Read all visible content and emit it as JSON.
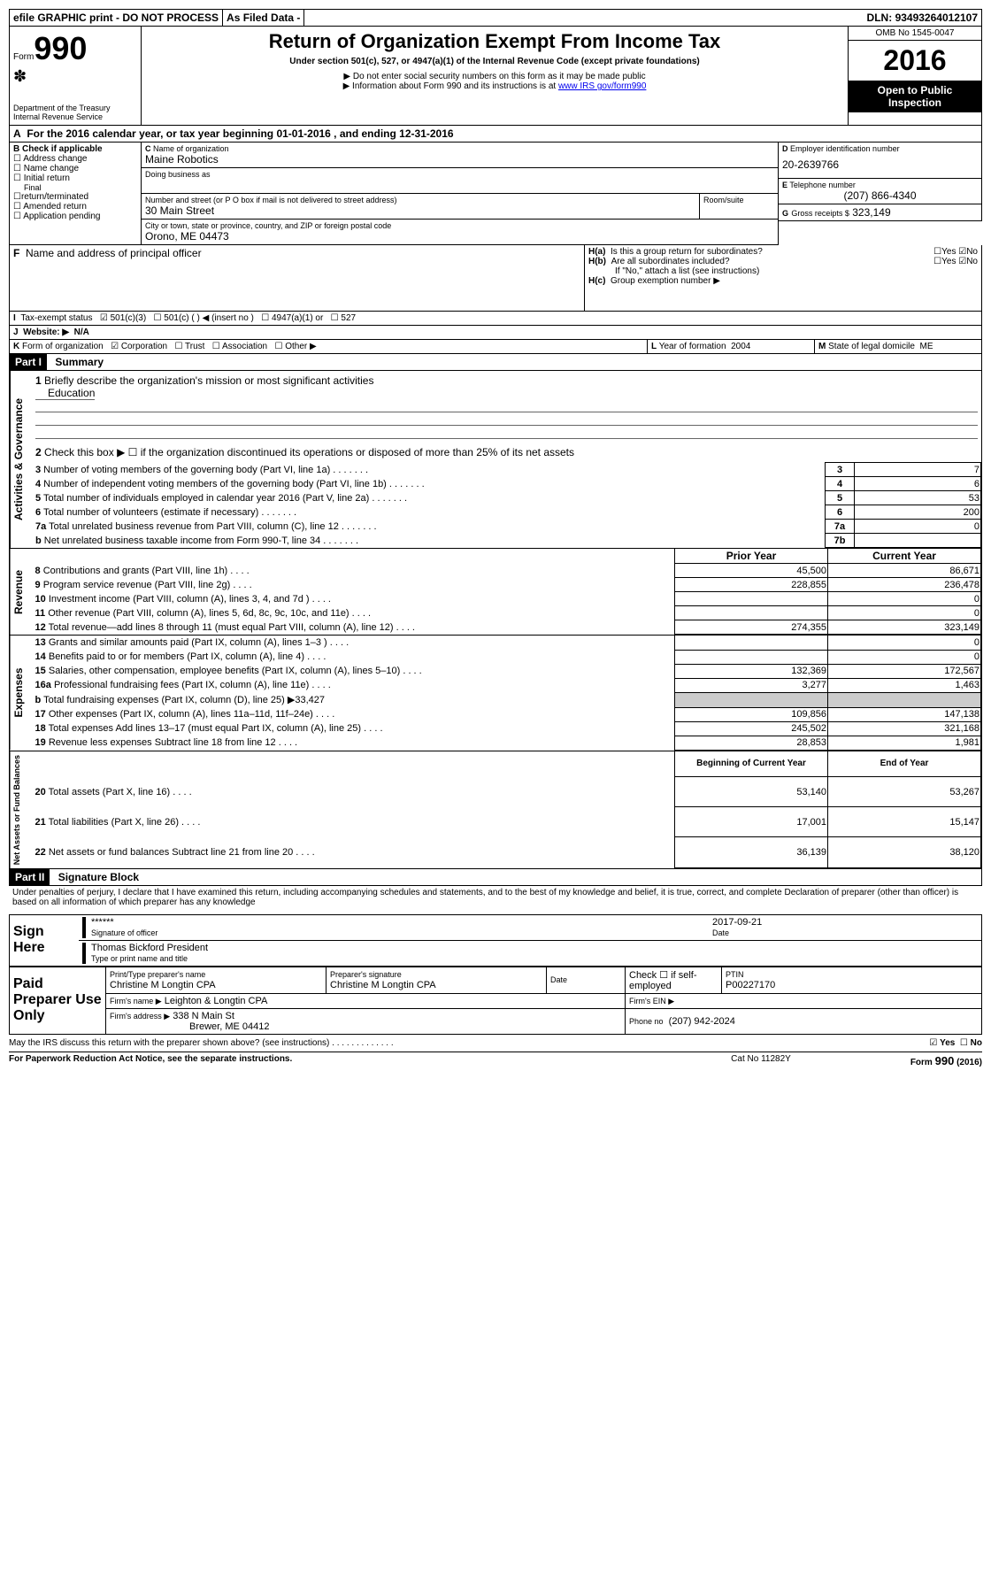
{
  "top": {
    "efile": "efile GRAPHIC print - DO NOT PROCESS",
    "asfiled": "As Filed Data -",
    "dln_label": "DLN:",
    "dln": "93493264012107"
  },
  "header": {
    "form_label": "Form",
    "form_no": "990",
    "dept": "Department of the Treasury",
    "irs": "Internal Revenue Service",
    "title": "Return of Organization Exempt From Income Tax",
    "subtitle": "Under section 501(c), 527, or 4947(a)(1) of the Internal Revenue Code (except private foundations)",
    "note1": "▶ Do not enter social security numbers on this form as it may be made public",
    "note2_pre": "▶ Information about Form 990 and its instructions is at ",
    "note2_link": "www IRS gov/form990",
    "omb": "OMB No 1545-0047",
    "year": "2016",
    "open": "Open to Public Inspection"
  },
  "A": {
    "text": "For the 2016 calendar year, or tax year beginning 01-01-2016  , and ending 12-31-2016"
  },
  "B": {
    "label": "Check if applicable",
    "opts": [
      "Address change",
      "Name change",
      "Initial return",
      "Final return/terminated",
      "Amended return",
      "Application pending"
    ]
  },
  "C": {
    "name_label": "Name of organization",
    "name": "Maine Robotics",
    "dba_label": "Doing business as",
    "addr_label": "Number and street (or P O  box if mail is not delivered to street address)",
    "room_label": "Room/suite",
    "addr": "30 Main Street",
    "city_label": "City or town, state or province, country, and ZIP or foreign postal code",
    "city": "Orono, ME  04473"
  },
  "D": {
    "label": "Employer identification number",
    "val": "20-2639766"
  },
  "E": {
    "label": "Telephone number",
    "val": "(207) 866-4340"
  },
  "G": {
    "label": "Gross receipts $",
    "val": "323,149"
  },
  "F": {
    "label": "Name and address of principal officer"
  },
  "H": {
    "a": "Is this a group return for subordinates?",
    "a_no": "No",
    "b": "Are all subordinates included?",
    "b_no": "No",
    "b_note": "If \"No,\" attach a list  (see instructions)",
    "c": "Group exemption number ▶"
  },
  "I": {
    "label": "Tax-exempt status",
    "c3": "501(c)(3)",
    "c": "501(c) (   ) ◀ (insert no )",
    "a1": "4947(a)(1) or",
    "s527": "527"
  },
  "J": {
    "label": "Website: ▶",
    "val": "N/A"
  },
  "K": {
    "label": "Form of organization",
    "opts": [
      "Corporation",
      "Trust",
      "Association",
      "Other ▶"
    ]
  },
  "L": {
    "label": "Year of formation",
    "val": "2004"
  },
  "M": {
    "label": "State of legal domicile",
    "val": "ME"
  },
  "partI": {
    "hdr": "Part I",
    "title": "Summary",
    "q1": "Briefly describe the organization's mission or most significant activities",
    "q1a": "Education",
    "q2": "Check this box ▶ ☐  if the organization discontinued its operations or disposed of more than 25% of its net assets",
    "rows": [
      {
        "n": "3",
        "t": "Number of voting members of the governing body (Part VI, line 1a)",
        "box": "3",
        "v": "7"
      },
      {
        "n": "4",
        "t": "Number of independent voting members of the governing body (Part VI, line 1b)",
        "box": "4",
        "v": "6"
      },
      {
        "n": "5",
        "t": "Total number of individuals employed in calendar year 2016 (Part V, line 2a)",
        "box": "5",
        "v": "53"
      },
      {
        "n": "6",
        "t": "Total number of volunteers (estimate if necessary)",
        "box": "6",
        "v": "200"
      },
      {
        "n": "7a",
        "t": "Total unrelated business revenue from Part VIII, column (C), line 12",
        "box": "7a",
        "v": "0"
      },
      {
        "n": "b",
        "t": "Net unrelated business taxable income from Form 990-T, line 34",
        "box": "7b",
        "v": ""
      }
    ],
    "py": "Prior Year",
    "cy": "Current Year",
    "rev": [
      {
        "n": "8",
        "t": "Contributions and grants (Part VIII, line 1h)",
        "p": "45,500",
        "c": "86,671"
      },
      {
        "n": "9",
        "t": "Program service revenue (Part VIII, line 2g)",
        "p": "228,855",
        "c": "236,478"
      },
      {
        "n": "10",
        "t": "Investment income (Part VIII, column (A), lines 3, 4, and 7d )",
        "p": "",
        "c": "0"
      },
      {
        "n": "11",
        "t": "Other revenue (Part VIII, column (A), lines 5, 6d, 8c, 9c, 10c, and 11e)",
        "p": "",
        "c": "0"
      },
      {
        "n": "12",
        "t": "Total revenue—add lines 8 through 11 (must equal Part VIII, column (A), line 12)",
        "p": "274,355",
        "c": "323,149"
      }
    ],
    "exp": [
      {
        "n": "13",
        "t": "Grants and similar amounts paid (Part IX, column (A), lines 1–3 )",
        "p": "",
        "c": "0"
      },
      {
        "n": "14",
        "t": "Benefits paid to or for members (Part IX, column (A), line 4)",
        "p": "",
        "c": "0"
      },
      {
        "n": "15",
        "t": "Salaries, other compensation, employee benefits (Part IX, column (A), lines 5–10)",
        "p": "132,369",
        "c": "172,567"
      },
      {
        "n": "16a",
        "t": "Professional fundraising fees (Part IX, column (A), line 11e)",
        "p": "3,277",
        "c": "1,463"
      },
      {
        "n": "b",
        "t": "Total fundraising expenses (Part IX, column (D), line 25) ▶33,427",
        "p": "",
        "c": "",
        "grey": true
      },
      {
        "n": "17",
        "t": "Other expenses (Part IX, column (A), lines 11a–11d, 11f–24e)",
        "p": "109,856",
        "c": "147,138"
      },
      {
        "n": "18",
        "t": "Total expenses  Add lines 13–17 (must equal Part IX, column (A), line 25)",
        "p": "245,502",
        "c": "321,168"
      },
      {
        "n": "19",
        "t": "Revenue less expenses  Subtract line 18 from line 12",
        "p": "28,853",
        "c": "1,981"
      }
    ],
    "bcy": "Beginning of Current Year",
    "ey": "End of Year",
    "net": [
      {
        "n": "20",
        "t": "Total assets (Part X, line 16)",
        "p": "53,140",
        "c": "53,267"
      },
      {
        "n": "21",
        "t": "Total liabilities (Part X, line 26)",
        "p": "17,001",
        "c": "15,147"
      },
      {
        "n": "22",
        "t": "Net assets or fund balances  Subtract line 21 from line 20",
        "p": "36,139",
        "c": "38,120"
      }
    ],
    "side_ag": "Activities & Governance",
    "side_rev": "Revenue",
    "side_exp": "Expenses",
    "side_net": "Net Assets or Fund Balances"
  },
  "partII": {
    "hdr": "Part II",
    "title": "Signature Block",
    "decl": "Under penalties of perjury, I declare that I have examined this return, including accompanying schedules and statements, and to the best of my knowledge and belief, it is true, correct, and complete  Declaration of preparer (other than officer) is based on all information of which preparer has any knowledge",
    "sign_here": "Sign Here",
    "stars": "******",
    "sig_officer": "Signature of officer",
    "date": "2017-09-21",
    "date_lbl": "Date",
    "name_title": "Thomas Bickford President",
    "type_lbl": "Type or print name and title",
    "paid": "Paid Preparer Use Only",
    "prep_name_lbl": "Print/Type preparer's name",
    "prep_name": "Christine M Longtin CPA",
    "prep_sig_lbl": "Preparer's signature",
    "prep_sig": "Christine M Longtin CPA",
    "check_lbl": "Check ☐ if self-employed",
    "ptin_lbl": "PTIN",
    "ptin": "P00227170",
    "firm_name_lbl": "Firm's name   ▶",
    "firm_name": "Leighton & Longtin CPA",
    "firm_ein_lbl": "Firm's EIN ▶",
    "firm_addr_lbl": "Firm's address ▶",
    "firm_addr": "338 N Main St",
    "firm_city": "Brewer, ME  04412",
    "phone_lbl": "Phone no",
    "phone": "(207) 942-2024",
    "discuss": "May the IRS discuss this return with the preparer shown above? (see instructions)",
    "yes": "Yes",
    "no": "No"
  },
  "footer": {
    "pra": "For Paperwork Reduction Act Notice, see the separate instructions.",
    "cat": "Cat No  11282Y",
    "form": "Form 990 (2016)"
  }
}
